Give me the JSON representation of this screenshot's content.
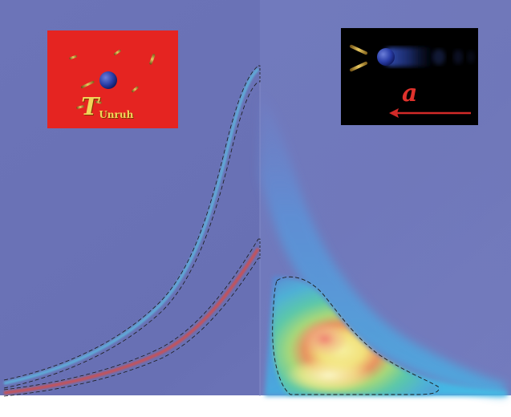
{
  "insets": {
    "left": {
      "symbol": "T",
      "subscript": "Unruh"
    },
    "right": {
      "symbol": "a"
    }
  },
  "colors": {
    "background": "#6a72b6",
    "inset_left_bg": "#e52421",
    "inset_right_bg": "#000000",
    "label_yellow": "#f2d55a",
    "arrow_red": "#d22a28"
  }
}
